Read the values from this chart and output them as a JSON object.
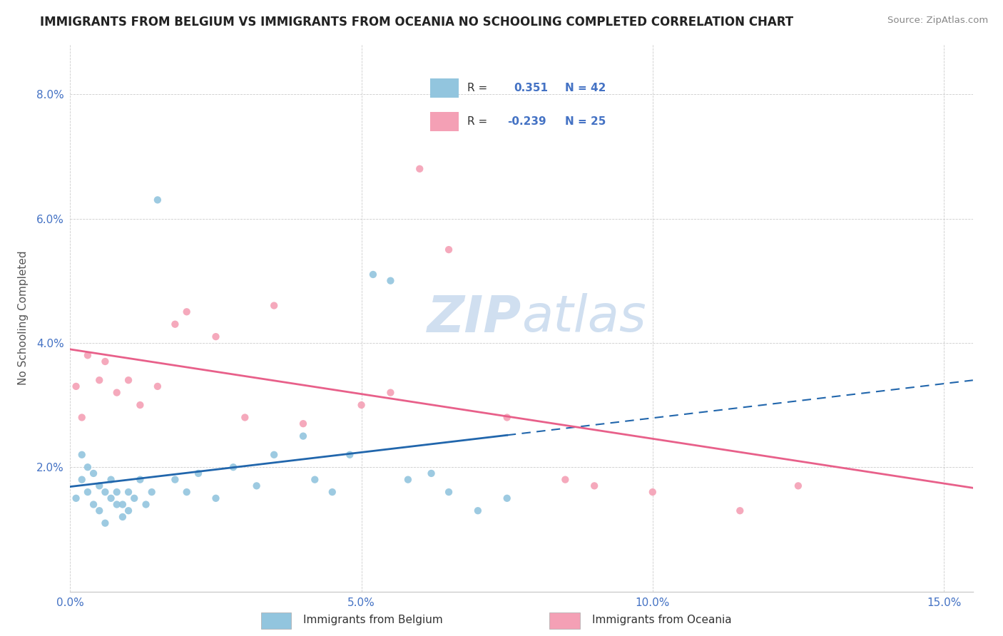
{
  "title": "IMMIGRANTS FROM BELGIUM VS IMMIGRANTS FROM OCEANIA NO SCHOOLING COMPLETED CORRELATION CHART",
  "source": "Source: ZipAtlas.com",
  "ylabel": "No Schooling Completed",
  "xlabel": "",
  "xlim": [
    0.0,
    0.155
  ],
  "ylim": [
    0.0,
    0.088
  ],
  "xtick_labels": [
    "0.0%",
    "5.0%",
    "10.0%",
    "15.0%"
  ],
  "xtick_vals": [
    0.0,
    0.05,
    0.1,
    0.15
  ],
  "ytick_labels": [
    "2.0%",
    "4.0%",
    "6.0%",
    "8.0%"
  ],
  "ytick_vals": [
    0.02,
    0.04,
    0.06,
    0.08
  ],
  "belgium_R": "0.351",
  "belgium_N": "42",
  "oceania_R": "-0.239",
  "oceania_N": "25",
  "belgium_color": "#92c5de",
  "oceania_color": "#f4a0b5",
  "belgium_line_color": "#2166ac",
  "oceania_line_color": "#e8608a",
  "legend_text_color": "#4472c4",
  "watermark_color": "#d0dff0",
  "belgium_scatter_x": [
    0.001,
    0.002,
    0.002,
    0.003,
    0.003,
    0.004,
    0.004,
    0.005,
    0.005,
    0.006,
    0.006,
    0.007,
    0.007,
    0.008,
    0.008,
    0.009,
    0.009,
    0.01,
    0.01,
    0.011,
    0.012,
    0.013,
    0.014,
    0.015,
    0.018,
    0.02,
    0.022,
    0.025,
    0.028,
    0.032,
    0.035,
    0.04,
    0.042,
    0.045,
    0.048,
    0.052,
    0.055,
    0.058,
    0.062,
    0.065,
    0.07,
    0.075
  ],
  "belgium_scatter_y": [
    0.015,
    0.018,
    0.022,
    0.016,
    0.02,
    0.014,
    0.019,
    0.013,
    0.017,
    0.011,
    0.016,
    0.015,
    0.018,
    0.014,
    0.016,
    0.012,
    0.014,
    0.013,
    0.016,
    0.015,
    0.018,
    0.014,
    0.016,
    0.063,
    0.018,
    0.016,
    0.019,
    0.015,
    0.02,
    0.017,
    0.022,
    0.025,
    0.018,
    0.016,
    0.022,
    0.051,
    0.05,
    0.018,
    0.019,
    0.016,
    0.013,
    0.015
  ],
  "oceania_scatter_x": [
    0.001,
    0.002,
    0.003,
    0.005,
    0.006,
    0.008,
    0.01,
    0.012,
    0.015,
    0.018,
    0.02,
    0.025,
    0.03,
    0.035,
    0.04,
    0.05,
    0.055,
    0.06,
    0.065,
    0.075,
    0.085,
    0.09,
    0.1,
    0.115,
    0.125
  ],
  "oceania_scatter_y": [
    0.033,
    0.028,
    0.038,
    0.034,
    0.037,
    0.032,
    0.034,
    0.03,
    0.033,
    0.043,
    0.045,
    0.041,
    0.028,
    0.046,
    0.027,
    0.03,
    0.032,
    0.068,
    0.055,
    0.028,
    0.018,
    0.017,
    0.016,
    0.013,
    0.017
  ]
}
